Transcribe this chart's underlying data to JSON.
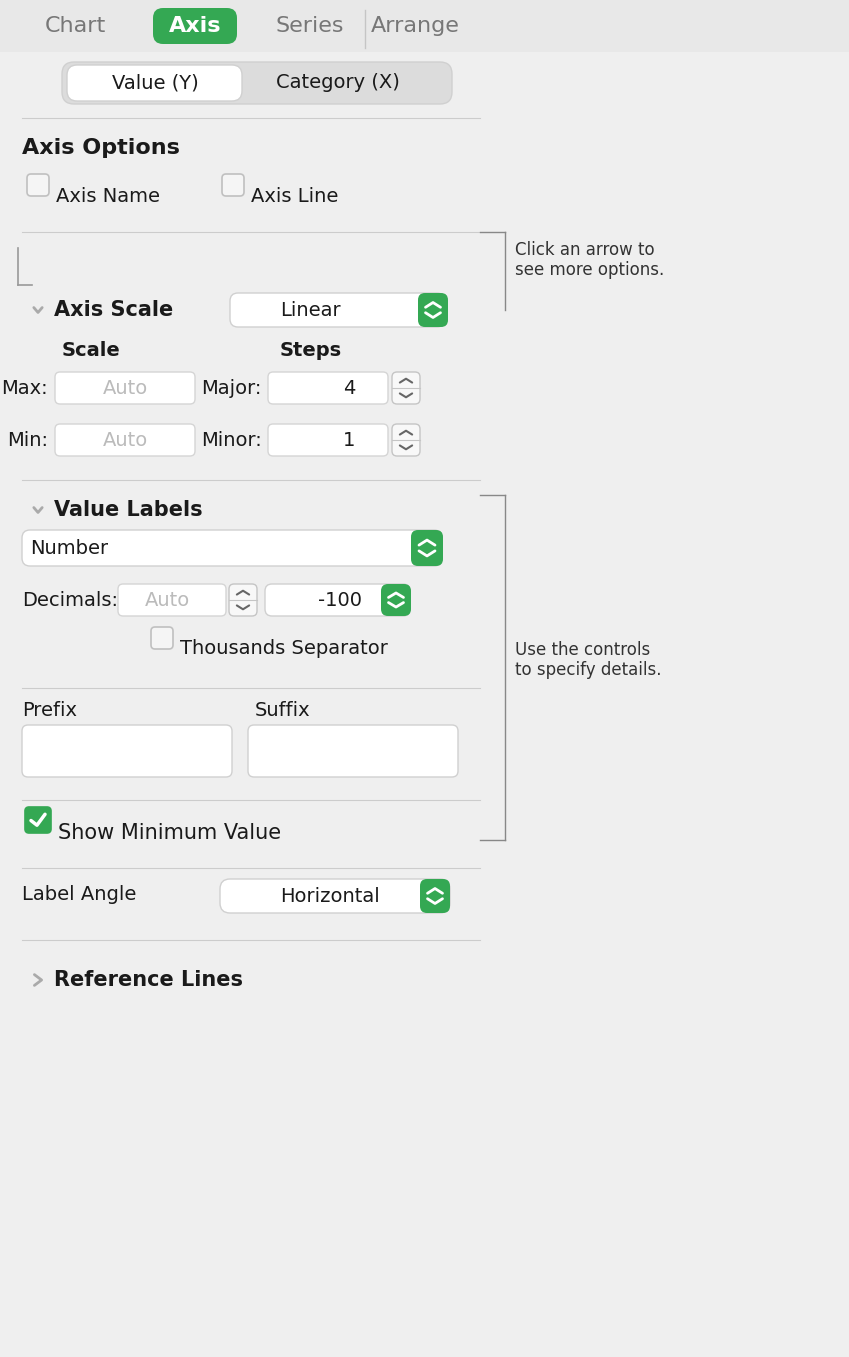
{
  "bg_color": "#efefef",
  "white": "#ffffff",
  "green": "#34a853",
  "dark_text": "#1a1a1a",
  "mid_text": "#555555",
  "gray_text": "#999999",
  "separator_color": "#cccccc",
  "tabs": [
    "Chart",
    "Axis",
    "Series",
    "Arrange"
  ],
  "active_tab": "Axis",
  "seg_btn1": "Value (Y)",
  "seg_btn2": "Category (X)",
  "section1_title": "Axis Options",
  "checkbox1_label": "Axis Name",
  "checkbox2_label": "Axis Line",
  "section2_title": "Axis Scale",
  "scale_dropdown": "Linear",
  "scale_col1": "Scale",
  "scale_col2": "Steps",
  "max_label": "Max:",
  "min_label": "Min:",
  "max_value": "Auto",
  "min_value": "Auto",
  "major_label": "Major:",
  "minor_label": "Minor:",
  "major_value": "4",
  "minor_value": "1",
  "section3_title": "Value Labels",
  "number_dropdown": "Number",
  "decimals_label": "Decimals:",
  "decimals_value": "Auto",
  "decimals_dropdown": "-100",
  "thousands_label": "Thousands Separator",
  "prefix_label": "Prefix",
  "suffix_label": "Suffix",
  "show_min_label": "Show Minimum Value",
  "label_angle_label": "Label Angle",
  "label_angle_dropdown": "Horizontal",
  "section4_title": "Reference Lines",
  "annotation1": "Click an arrow to\nsee more options.",
  "annotation2": "Use the controls\nto specify details.",
  "figsize": [
    8.49,
    13.57
  ],
  "dpi": 100
}
